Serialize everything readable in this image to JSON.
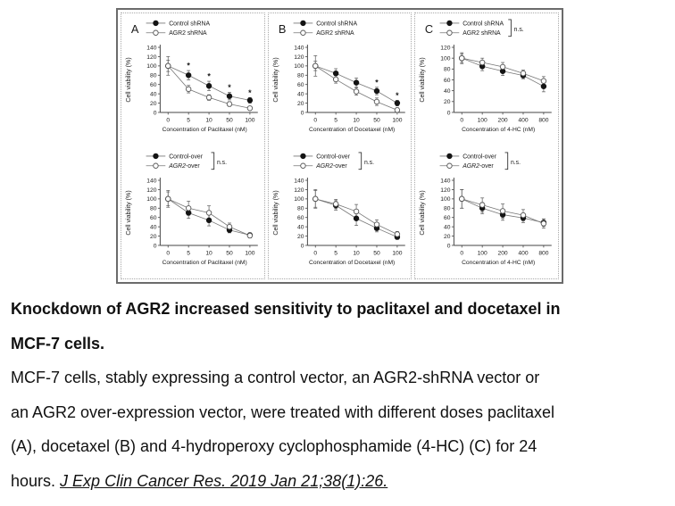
{
  "labels": {
    "ns": "n.s.",
    "sig_marker": "*"
  },
  "chart_data": [
    {
      "type": "line",
      "panel": "A",
      "ns": false,
      "x_categories": [
        "0",
        "5",
        "10",
        "50",
        "100"
      ],
      "xlabel": "Concentration of Paclitaxel (nM)",
      "ylabel": "Cell viability (%)",
      "ylim": [
        0,
        140
      ],
      "ytick_step": 20,
      "series": [
        {
          "name": "Control shRNA",
          "marker": "filled",
          "values": [
            100,
            80,
            57,
            35,
            26
          ],
          "errors": [
            12,
            10,
            10,
            8,
            6
          ]
        },
        {
          "name": "AGR2 shRNA",
          "marker": "open",
          "values": [
            100,
            50,
            32,
            18,
            9
          ],
          "errors": [
            20,
            8,
            6,
            5,
            4
          ]
        }
      ],
      "asterisks": {
        "series": 0,
        "indices": [
          1,
          2,
          3,
          4
        ]
      }
    },
    {
      "type": "line",
      "panel": "B",
      "ns": false,
      "x_categories": [
        "0",
        "5",
        "10",
        "50",
        "100"
      ],
      "xlabel": "Concentration of Docetaxel (nM)",
      "ylabel": "Cell viability (%)",
      "ylim": [
        0,
        140
      ],
      "ytick_step": 20,
      "series": [
        {
          "name": "Control shRNA",
          "marker": "filled",
          "values": [
            100,
            84,
            64,
            46,
            20
          ],
          "errors": [
            10,
            10,
            10,
            8,
            6
          ]
        },
        {
          "name": "AGR2 shRNA",
          "marker": "open",
          "values": [
            100,
            71,
            45,
            23,
            5
          ],
          "errors": [
            22,
            8,
            8,
            8,
            5
          ]
        }
      ],
      "asterisks": {
        "series": 0,
        "indices": [
          3,
          4
        ]
      }
    },
    {
      "type": "line",
      "panel": "C",
      "ns": true,
      "x_categories": [
        "0",
        "100",
        "200",
        "400",
        "800"
      ],
      "xlabel": "Concentration of 4-HC (nM)",
      "ylabel": "Cell viability (%)",
      "ylim": [
        0,
        120
      ],
      "ytick_step": 20,
      "series": [
        {
          "name": "Control shRNA",
          "marker": "filled",
          "values": [
            100,
            85,
            76,
            68,
            48
          ],
          "errors": [
            10,
            8,
            8,
            6,
            10
          ]
        },
        {
          "name": "AGR2 shRNA",
          "marker": "open",
          "values": [
            100,
            92,
            84,
            72,
            58
          ],
          "errors": [
            8,
            8,
            8,
            6,
            8
          ]
        }
      ]
    },
    {
      "type": "line",
      "panel": "",
      "ns": true,
      "x_categories": [
        "0",
        "5",
        "10",
        "50",
        "100"
      ],
      "xlabel": "Concentration of Paclitaxel (nM)",
      "ylabel": "Cell viability (%)",
      "ylim": [
        0,
        140
      ],
      "ytick_step": 20,
      "series": [
        {
          "name": "Control-over",
          "marker": "filled",
          "values": [
            100,
            70,
            54,
            33,
            22
          ],
          "errors": [
            15,
            12,
            12,
            6,
            5
          ]
        },
        {
          "name": "AGR2-over",
          "marker": "open",
          "italic_prefix": "AGR2",
          "values": [
            100,
            80,
            70,
            40,
            21
          ],
          "errors": [
            18,
            15,
            15,
            8,
            5
          ]
        }
      ]
    },
    {
      "type": "line",
      "panel": "",
      "ns": true,
      "x_categories": [
        "0",
        "5",
        "10",
        "50",
        "100"
      ],
      "xlabel": "Concentration of Docetaxel (nM)",
      "ylabel": "Cell viability (%)",
      "ylim": [
        0,
        140
      ],
      "ytick_step": 20,
      "series": [
        {
          "name": "Control-over",
          "marker": "filled",
          "values": [
            100,
            86,
            58,
            37,
            18
          ],
          "errors": [
            18,
            10,
            15,
            8,
            5
          ]
        },
        {
          "name": "AGR2-over",
          "marker": "open",
          "italic_prefix": "AGR2",
          "values": [
            100,
            89,
            73,
            45,
            24
          ],
          "errors": [
            20,
            10,
            15,
            10,
            6
          ]
        }
      ]
    },
    {
      "type": "line",
      "panel": "",
      "ns": true,
      "x_categories": [
        "0",
        "100",
        "200",
        "400",
        "800"
      ],
      "xlabel": "Concentration of 4-HC (nM)",
      "ylabel": "Cell viability (%)",
      "ylim": [
        0,
        140
      ],
      "ytick_step": 20,
      "series": [
        {
          "name": "Control-over",
          "marker": "filled",
          "values": [
            100,
            80,
            66,
            59,
            49
          ],
          "errors": [
            20,
            12,
            12,
            10,
            8
          ]
        },
        {
          "name": "AGR2-over",
          "marker": "open",
          "italic_prefix": "AGR2",
          "values": [
            100,
            87,
            74,
            65,
            47
          ],
          "errors": [
            20,
            15,
            15,
            12,
            10
          ]
        }
      ]
    }
  ],
  "caption": {
    "heading_lines": [
      "Knockdown of AGR2 increased sensitivity to paclitaxel and docetaxel in",
      "MCF-7 cells."
    ],
    "body_lines": [
      "MCF-7 cells, stably expressing a control vector, an AGR2-shRNA vector or",
      "an AGR2 over-expression vector, were treated with different doses paclitaxel",
      "(A), docetaxel (B) and 4-hydroperoxy cyclophosphamide (4-HC) (C) for 24"
    ],
    "body_last": "hours.",
    "citation": "J Exp Clin Cancer Res. 2019 Jan 21;38(1):26."
  }
}
